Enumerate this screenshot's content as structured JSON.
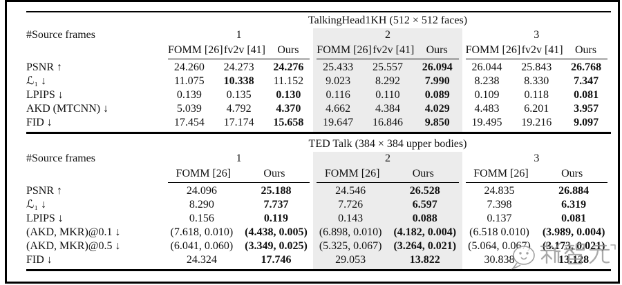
{
  "colors": {
    "shade": "#ececec",
    "rule": "#000000",
    "text": "#111111",
    "watermark": "#8f8f8f"
  },
  "tables": [
    {
      "title": "TalkingHead1KH (512 × 512 faces)",
      "corner_label": "#Source frames",
      "groups": [
        {
          "label": "1",
          "shaded": false,
          "methods": [
            "FOMM [26]",
            "fv2v [41]",
            "Ours"
          ]
        },
        {
          "label": "2",
          "shaded": true,
          "methods": [
            "FOMM [26]",
            "fv2v [41]",
            "Ours"
          ]
        },
        {
          "label": "3",
          "shaded": false,
          "methods": [
            "FOMM [26]",
            "fv2v [41]",
            "Ours"
          ]
        }
      ],
      "rows": [
        {
          "metric": "PSNR ↑",
          "values": [
            "24.260",
            "24.273",
            "24.276",
            "25.433",
            "25.557",
            "26.094",
            "26.044",
            "25.843",
            "26.768"
          ],
          "bold": [
            2,
            5,
            8
          ]
        },
        {
          "metric": "ℒ₁ ↓",
          "values": [
            "11.075",
            "10.338",
            "11.152",
            "9.023",
            "8.292",
            "7.990",
            "8.238",
            "8.330",
            "7.347"
          ],
          "bold": [
            1,
            5,
            8
          ]
        },
        {
          "metric": "LPIPS ↓",
          "values": [
            "0.139",
            "0.135",
            "0.130",
            "0.116",
            "0.110",
            "0.089",
            "0.109",
            "0.118",
            "0.081"
          ],
          "bold": [
            2,
            5,
            8
          ]
        },
        {
          "metric": "AKD (MTCNN) ↓",
          "values": [
            "5.039",
            "4.792",
            "4.370",
            "4.662",
            "4.384",
            "4.029",
            "4.483",
            "6.201",
            "3.957"
          ],
          "bold": [
            2,
            5,
            8
          ]
        },
        {
          "metric": "FID ↓",
          "values": [
            "17.454",
            "17.174",
            "15.658",
            "19.647",
            "16.846",
            "9.850",
            "19.495",
            "19.216",
            "9.097"
          ],
          "bold": [
            2,
            5,
            8
          ]
        }
      ]
    },
    {
      "title": "TED Talk (384 × 384 upper bodies)",
      "corner_label": "#Source frames",
      "groups": [
        {
          "label": "1",
          "shaded": false,
          "methods": [
            "FOMM [26]",
            "Ours"
          ]
        },
        {
          "label": "2",
          "shaded": true,
          "methods": [
            "FOMM [26]",
            "Ours"
          ]
        },
        {
          "label": "3",
          "shaded": false,
          "methods": [
            "FOMM [26]",
            "Ours"
          ]
        }
      ],
      "rows": [
        {
          "metric": "PSNR ↑",
          "values": [
            "24.096",
            "25.188",
            "24.546",
            "26.528",
            "24.835",
            "26.884"
          ],
          "bold": [
            1,
            3,
            5
          ]
        },
        {
          "metric": "ℒ₁ ↓",
          "values": [
            "8.290",
            "7.737",
            "7.726",
            "6.597",
            "7.398",
            "6.319"
          ],
          "bold": [
            1,
            3,
            5
          ]
        },
        {
          "metric": "LPIPS ↓",
          "values": [
            "0.156",
            "0.119",
            "0.143",
            "0.088",
            "0.137",
            "0.081"
          ],
          "bold": [
            1,
            3,
            5
          ]
        },
        {
          "metric": "(AKD, MKR)@0.1 ↓",
          "values": [
            "(7.618, 0.010)",
            "(4.438, 0.005)",
            "(6.898, 0.010)",
            "(4.182, 0.004)",
            "(6.518 0.010)",
            "(3.989, 0.004)"
          ],
          "bold": [
            1,
            3,
            5
          ]
        },
        {
          "metric": "(AKD, MKR)@0.5 ↓",
          "values": [
            "(6.041, 0.060)",
            "(3.349, 0.025)",
            "(5.325, 0.067)",
            "(3.264, 0.021)",
            "(5.064, 0.067)",
            "(3.173, 0.021)"
          ],
          "bold": [
            1,
            3,
            5
          ]
        },
        {
          "metric": "FID ↓",
          "values": [
            "24.324",
            "17.746",
            "29.053",
            "13.822",
            "30.838",
            "13.128"
          ],
          "bold": [
            1,
            3,
            5
          ]
        }
      ]
    }
  ],
  "watermark": {
    "text": "新智元",
    "icon": "chat-bubble-face-logo"
  }
}
